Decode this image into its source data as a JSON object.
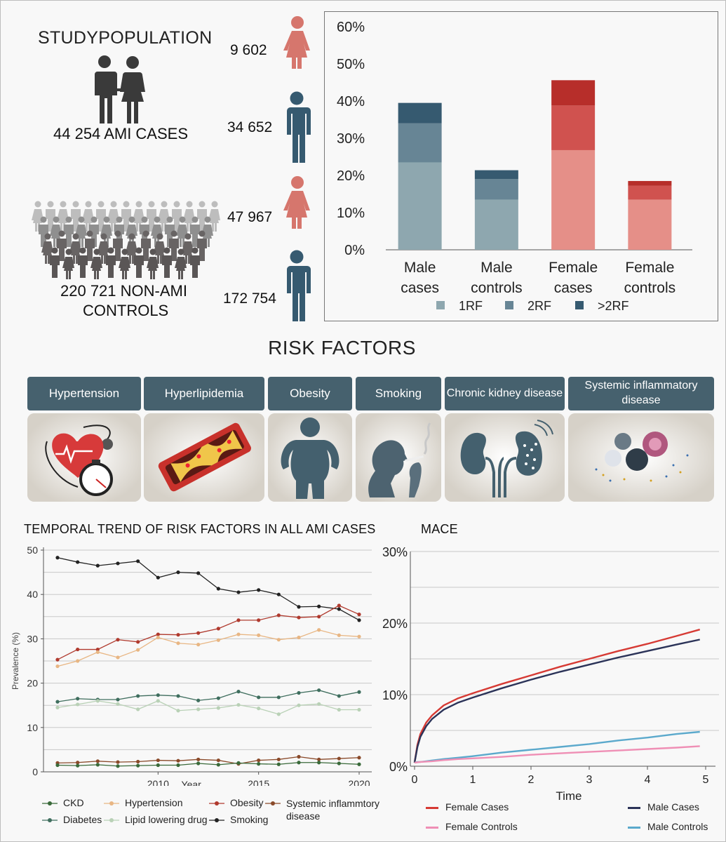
{
  "study": {
    "title": "STUDYPOPULATION",
    "cases_label": "44 254 AMI CASES",
    "controls_label_1": "220 721 NON-AMI",
    "controls_label_2": "CONTROLS",
    "female_cases": "9 602",
    "male_cases": "34 652",
    "female_controls": "47 967",
    "male_controls": "172 754"
  },
  "risk_factors": {
    "title": "RISK FACTORS",
    "items": [
      {
        "label": "Hypertension",
        "icon": "heart-blood-pressure-icon"
      },
      {
        "label": "Hyperlipidemia",
        "icon": "plaque-artery-icon"
      },
      {
        "label": "Obesity",
        "icon": "obese-person-icon"
      },
      {
        "label": "Smoking",
        "icon": "smoking-person-icon"
      },
      {
        "label": "Chronic kidney disease",
        "icon": "kidneys-icon"
      },
      {
        "label": "Systemic inflammatory disease",
        "icon": "inflammatory-cells-icon"
      }
    ]
  },
  "colors": {
    "male_1rf": "#8ea7af",
    "male_2rf": "#678595",
    "male_3rf": "#365a70",
    "female_1rf": "#e58f88",
    "female_2rf": "#d0524f",
    "female_3rf": "#b72e2a",
    "rf_header": "#46616e"
  },
  "chart_data": [
    {
      "type": "bar",
      "stacked": true,
      "categories": [
        "Male cases",
        "Male controls",
        "Female cases",
        "Female controls"
      ],
      "category_lines": [
        [
          "Male",
          "cases"
        ],
        [
          "Male",
          "controls"
        ],
        [
          "Female",
          "cases"
        ],
        [
          "Female",
          "controls"
        ]
      ],
      "series": [
        {
          "name": "1RF",
          "values": [
            23.5,
            13.5,
            26.8,
            13.5
          ]
        },
        {
          "name": "2RF",
          "values": [
            10.5,
            5.5,
            12.0,
            3.7
          ]
        },
        {
          "name": ">2RF",
          "values": [
            5.5,
            2.4,
            6.8,
            1.3
          ]
        }
      ],
      "ylim": [
        0,
        60
      ],
      "yticks": [
        "0%",
        "10%",
        "20%",
        "30%",
        "40%",
        "50%",
        "60%"
      ],
      "legend_position": "bottom"
    },
    {
      "type": "line",
      "title": "TEMPORAL TREND OF RISK FACTORS IN ALL AMI CASES",
      "xlabel": "Year",
      "ylabel": "Prevalence (%)",
      "x": [
        2005,
        2006,
        2007,
        2008,
        2009,
        2010,
        2011,
        2012,
        2013,
        2014,
        2015,
        2016,
        2017,
        2018,
        2019,
        2020,
        2021
      ],
      "xticks": [
        2010,
        2015,
        2020
      ],
      "yticks": [
        0,
        10,
        20,
        30,
        40,
        50
      ],
      "ylim": [
        0,
        50
      ],
      "series": [
        {
          "name": "Smoking",
          "color": "#222222",
          "values": [
            48.3,
            47.3,
            46.5,
            47.0,
            47.5,
            43.8,
            45.0,
            44.8,
            41.3,
            40.5,
            41.0,
            40.0,
            37.2,
            37.3,
            36.7,
            34.2,
            null
          ]
        },
        {
          "name": "Obesity",
          "color": "#b03a2e",
          "values": [
            25.3,
            27.6,
            27.6,
            29.8,
            29.3,
            31.0,
            30.9,
            31.3,
            32.3,
            34.2,
            34.2,
            35.3,
            34.8,
            35.0,
            37.5,
            35.5,
            null
          ]
        },
        {
          "name": "Hypertension",
          "color": "#e8b683",
          "values": [
            23.8,
            25.0,
            27.0,
            25.8,
            27.5,
            30.3,
            29.0,
            28.7,
            29.7,
            31.0,
            30.8,
            29.8,
            30.3,
            32.0,
            30.8,
            30.5,
            null
          ]
        },
        {
          "name": "Diabetes",
          "color": "#3f6e5e",
          "values": [
            15.8,
            16.5,
            16.3,
            16.3,
            17.1,
            17.3,
            17.1,
            16.1,
            16.6,
            18.1,
            16.8,
            16.8,
            17.8,
            18.4,
            17.1,
            18.0,
            null
          ]
        },
        {
          "name": "Lipid lowering drug",
          "color": "#b9d1b6",
          "values": [
            14.5,
            15.2,
            16.0,
            15.3,
            14.1,
            16.0,
            13.8,
            14.1,
            14.4,
            15.1,
            14.3,
            13.0,
            15.0,
            15.3,
            14.0,
            14.0,
            null
          ]
        },
        {
          "name": "Systemic inflammtory disease",
          "color": "#8a4a2a",
          "values": [
            2.0,
            2.1,
            2.4,
            2.2,
            2.3,
            2.6,
            2.5,
            2.8,
            2.6,
            1.8,
            2.6,
            2.8,
            3.4,
            2.8,
            3.0,
            3.2,
            null
          ]
        },
        {
          "name": "CKD",
          "color": "#3a6a3a",
          "values": [
            1.5,
            1.4,
            1.6,
            1.3,
            1.4,
            1.5,
            1.5,
            1.9,
            1.6,
            2.0,
            1.8,
            1.7,
            2.1,
            2.1,
            1.9,
            1.7,
            null
          ]
        }
      ],
      "legend": [
        {
          "name": "CKD",
          "color": "#3a6a3a"
        },
        {
          "name": "Hypertension",
          "color": "#e8b683"
        },
        {
          "name": "Obesity",
          "color": "#b03a2e"
        },
        {
          "name": "Systemic inflammtory disease",
          "color": "#8a4a2a"
        },
        {
          "name": "Diabetes",
          "color": "#3f6e5e"
        },
        {
          "name": "Lipid lowering drug",
          "color": "#b9d1b6"
        },
        {
          "name": "Smoking",
          "color": "#222222"
        }
      ],
      "legend_position": "bottom"
    },
    {
      "type": "line",
      "title": "MACE",
      "xlabel": "Time",
      "xticks": [
        0,
        1,
        2,
        3,
        4,
        5
      ],
      "yticks": [
        "0%",
        "10%",
        "20%",
        "30%"
      ],
      "ylim": [
        0,
        30
      ],
      "xlim": [
        0,
        5
      ],
      "t": [
        0,
        0.05,
        0.1,
        0.2,
        0.3,
        0.5,
        0.75,
        1,
        1.5,
        2,
        2.5,
        3,
        3.5,
        4,
        4.5,
        4.9
      ],
      "series": [
        {
          "name": "Female Cases",
          "color": "#d63a34",
          "values": [
            0.5,
            3.0,
            4.5,
            6.1,
            7.1,
            8.5,
            9.5,
            10.2,
            11.5,
            12.7,
            13.9,
            15.0,
            16.1,
            17.1,
            18.2,
            19.1
          ]
        },
        {
          "name": "Male Cases",
          "color": "#2b3358",
          "values": [
            0.5,
            2.7,
            4.1,
            5.6,
            6.6,
            7.9,
            8.9,
            9.6,
            10.9,
            12.1,
            13.2,
            14.2,
            15.2,
            16.1,
            17.0,
            17.7
          ]
        },
        {
          "name": "Male Controls",
          "color": "#5ba9cc",
          "values": [
            0.5,
            0.6,
            0.6,
            0.7,
            0.8,
            1.0,
            1.2,
            1.4,
            1.9,
            2.3,
            2.7,
            3.1,
            3.6,
            4.0,
            4.5,
            4.8
          ]
        },
        {
          "name": "Female Controls",
          "color": "#ef8fb5",
          "values": [
            0.5,
            0.55,
            0.6,
            0.65,
            0.7,
            0.85,
            1.0,
            1.1,
            1.3,
            1.6,
            1.8,
            2.0,
            2.2,
            2.4,
            2.6,
            2.8
          ]
        }
      ],
      "legend": [
        {
          "name": "Female Cases",
          "color": "#d63a34"
        },
        {
          "name": "Male Cases",
          "color": "#2b3358"
        },
        {
          "name": "Female Controls",
          "color": "#ef8fb5"
        },
        {
          "name": "Male Controls",
          "color": "#5ba9cc"
        }
      ],
      "legend_position": "bottom"
    }
  ]
}
